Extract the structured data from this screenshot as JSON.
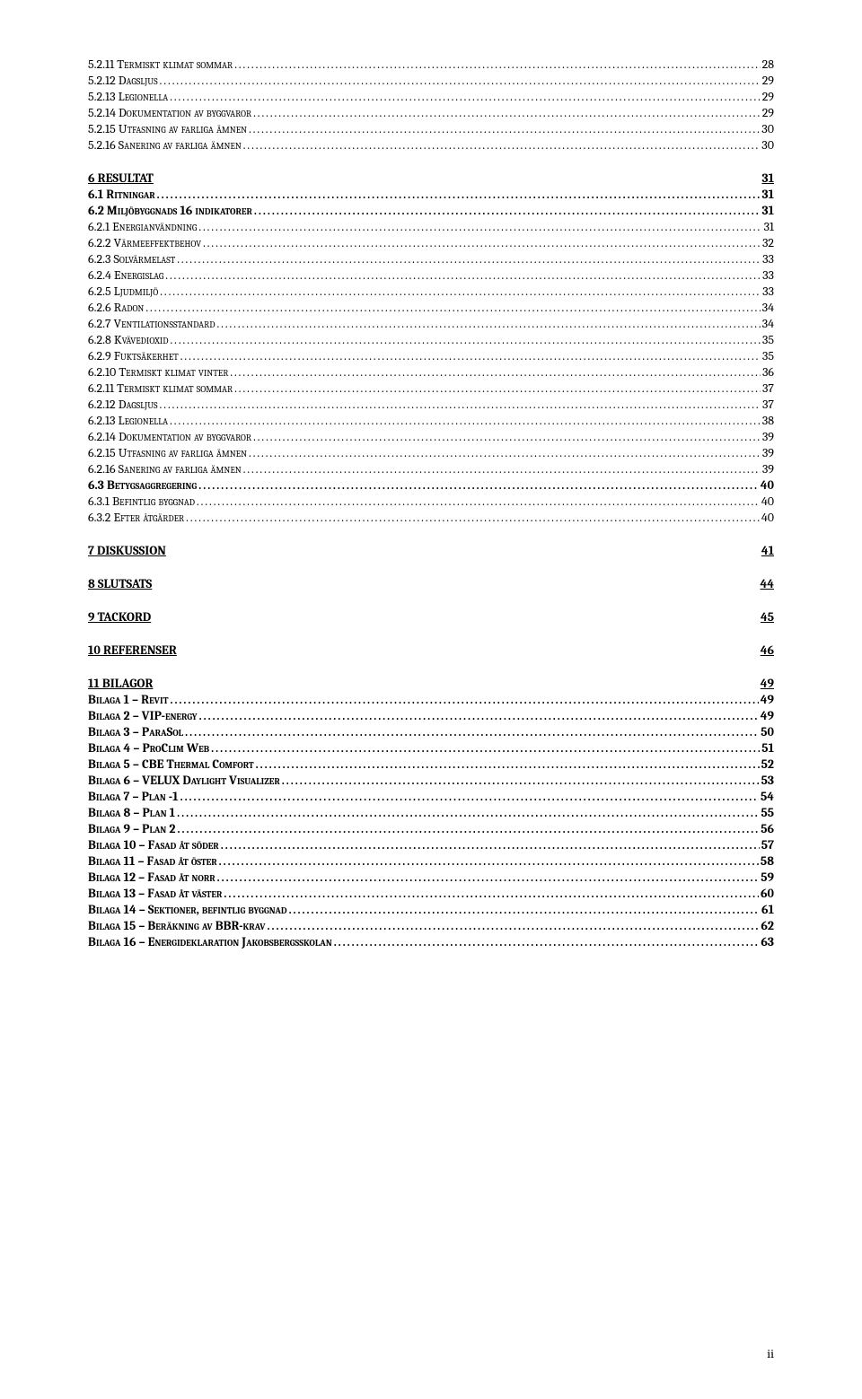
{
  "toc": [
    {
      "level": "h3",
      "text": "5.2.11 Termiskt klimat sommar",
      "page": "28"
    },
    {
      "level": "h3",
      "text": "5.2.12 Dagsljus",
      "page": "29"
    },
    {
      "level": "h3",
      "text": "5.2.13 Legionella",
      "page": "29"
    },
    {
      "level": "h3",
      "text": "5.2.14 Dokumentation av byggvaror",
      "page": "29"
    },
    {
      "level": "h3",
      "text": "5.2.15 Utfasning av farliga ämnen",
      "page": "30"
    },
    {
      "level": "h3",
      "text": "5.2.16 Sanering av farliga ämnen",
      "page": "30"
    },
    {
      "level": "h1",
      "text": "6 RESULTAT",
      "page": "31"
    },
    {
      "level": "h2",
      "text": "6.1 Ritningar",
      "page": "31"
    },
    {
      "level": "h2",
      "text": "6.2 Miljöbyggnads 16 indikatorer",
      "page": "31"
    },
    {
      "level": "h3",
      "text": "6.2.1 Energianvändning",
      "page": "31"
    },
    {
      "level": "h3",
      "text": "6.2.2 Värmeeffektbehov",
      "page": "32"
    },
    {
      "level": "h3",
      "text": "6.2.3 Solvärmelast",
      "page": "33"
    },
    {
      "level": "h3",
      "text": "6.2.4 Energislag",
      "page": "33"
    },
    {
      "level": "h3",
      "text": "6.2.5 Ljudmiljö",
      "page": "33"
    },
    {
      "level": "h3",
      "text": "6.2.6 Radon",
      "page": "34"
    },
    {
      "level": "h3",
      "text": "6.2.7 Ventilationsstandard",
      "page": "34"
    },
    {
      "level": "h3",
      "text": "6.2.8 Kvävedioxid",
      "page": "35"
    },
    {
      "level": "h3",
      "text": "6.2.9 Fuktsäkerhet",
      "page": "35"
    },
    {
      "level": "h3",
      "text": "6.2.10 Termiskt klimat vinter",
      "page": "36"
    },
    {
      "level": "h3",
      "text": "6.2.11 Termiskt klimat sommar",
      "page": "37"
    },
    {
      "level": "h3",
      "text": "6.2.12 Dagsljus",
      "page": "37"
    },
    {
      "level": "h3",
      "text": "6.2.13 Legionella",
      "page": "38"
    },
    {
      "level": "h3",
      "text": "6.2.14 Dokumentation av byggvaror",
      "page": "39"
    },
    {
      "level": "h3",
      "text": "6.2.15 Utfasning av farliga ämnen",
      "page": "39"
    },
    {
      "level": "h3",
      "text": "6.2.16 Sanering av farliga ämnen",
      "page": "39"
    },
    {
      "level": "h2",
      "text": "6.3 Betygsaggregering",
      "page": "40"
    },
    {
      "level": "h3",
      "text": "6.3.1 Befintlig byggnad",
      "page": "40"
    },
    {
      "level": "h3",
      "text": "6.3.2 Efter åtgärder",
      "page": "40"
    },
    {
      "level": "h1",
      "text": "7 DISKUSSION",
      "page": "41"
    },
    {
      "level": "h1",
      "text": "8 SLUTSATS",
      "page": "44"
    },
    {
      "level": "h1",
      "text": "9 TACKORD",
      "page": "45"
    },
    {
      "level": "h1",
      "text": "10 REFERENSER",
      "page": "46"
    },
    {
      "level": "h1",
      "text": "11 BILAGOR",
      "page": "49"
    },
    {
      "level": "h2",
      "text": "Bilaga 1 – Revit",
      "page": "49"
    },
    {
      "level": "h2",
      "text": "Bilaga 2 – VIP-energy",
      "page": "49"
    },
    {
      "level": "h2",
      "text": "Bilaga 3 – ParaSol",
      "page": "50"
    },
    {
      "level": "h2",
      "text": "Bilaga 4 – ProClim Web",
      "page": "51"
    },
    {
      "level": "h2",
      "text": "Bilaga 5 – CBE Thermal Comfort",
      "page": "52"
    },
    {
      "level": "h2",
      "text": "Bilaga 6 – VELUX Daylight Visualizer",
      "page": "53"
    },
    {
      "level": "h2",
      "text": "Bilaga 7 – Plan -1",
      "page": "54"
    },
    {
      "level": "h2",
      "text": "Bilaga 8 – Plan 1",
      "page": "55"
    },
    {
      "level": "h2",
      "text": "Bilaga 9 – Plan 2",
      "page": "56"
    },
    {
      "level": "h2",
      "text": "Bilaga 10 – Fasad åt söder",
      "page": "57"
    },
    {
      "level": "h2",
      "text": "Bilaga 11 – Fasad åt öster",
      "page": "58"
    },
    {
      "level": "h2",
      "text": "Bilaga 12 – Fasad åt norr",
      "page": "59"
    },
    {
      "level": "h2",
      "text": "Bilaga 13 – Fasad åt väster",
      "page": "60"
    },
    {
      "level": "h2",
      "text": "Bilaga 14 – Sektioner, befintlig byggnad",
      "page": "61"
    },
    {
      "level": "h2",
      "text": "Bilaga 15 – Beräkning av BBR-krav",
      "page": "62"
    },
    {
      "level": "h2",
      "text": "Bilaga 16 – Energideklaration Jakobsbergsskolan",
      "page": "63"
    }
  ],
  "footer": {
    "page_number": "ii"
  },
  "colors": {
    "background": "#ffffff",
    "text": "#000000"
  },
  "typography": {
    "base_fontsize_pt": 11,
    "font_family": "Cambria, Georgia, serif"
  }
}
